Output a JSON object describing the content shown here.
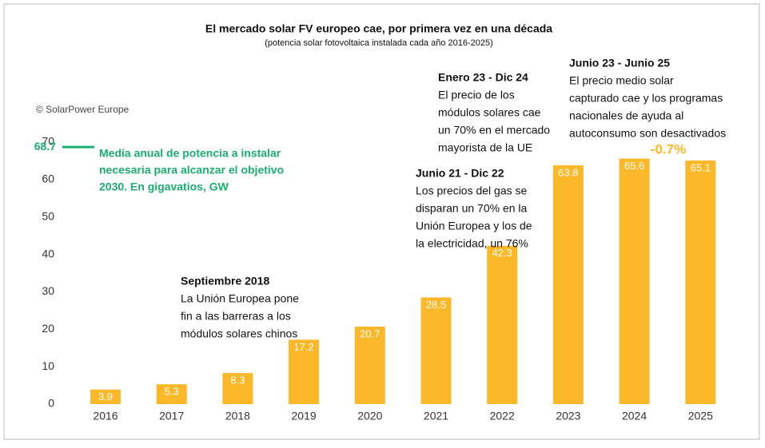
{
  "chart_data": {
    "type": "bar",
    "title": "El mercado solar FV europeo cae, por primera vez en una década",
    "subtitle": "(potencia solar fotovoltaica instalada cada año 2016-2025)",
    "source": "© SolarPower Europe",
    "categories": [
      "2016",
      "2017",
      "2018",
      "2019",
      "2020",
      "2021",
      "2022",
      "2023",
      "2024",
      "2025"
    ],
    "values": [
      3.9,
      5.3,
      8.3,
      17.2,
      20.7,
      28.5,
      42.3,
      63.8,
      65.6,
      65.1
    ],
    "color": "#fbb829",
    "ylim": [
      0,
      70
    ],
    "yticks": [
      0,
      10,
      20,
      30,
      40,
      50,
      60,
      70
    ],
    "grid": false,
    "reference_line": {
      "value": 68.7,
      "color": "#1aae6f",
      "text": [
        "Media anual de potencia a instalar",
        "necesaria para alcanzar el objetivo",
        "2030. En gigavatios, GW"
      ]
    },
    "change_label": "-0.7%",
    "annotations": [
      {
        "title": "Septiembre 2018",
        "lines": [
          "La Unión Europea pone",
          "fin a las barreras a los",
          "módulos solares chinos"
        ]
      },
      {
        "title": "Junio 21 - Dic 22",
        "lines": [
          "Los precios del gas se",
          "disparan un 70% en la",
          "Unión Europea y los de",
          "la electricidad, un 76%"
        ]
      },
      {
        "title": "Enero 23 - Dic 24",
        "lines": [
          "El precio de los",
          "módulos solares cae",
          "un 70% en el mercado",
          "mayorista de la UE"
        ]
      },
      {
        "title": "Junio 23 - Junio 25",
        "lines": [
          "El precio medio solar",
          "capturado cae y los programas",
          "nacionales de ayuda al",
          "autoconsumo son desactivados"
        ]
      }
    ]
  }
}
